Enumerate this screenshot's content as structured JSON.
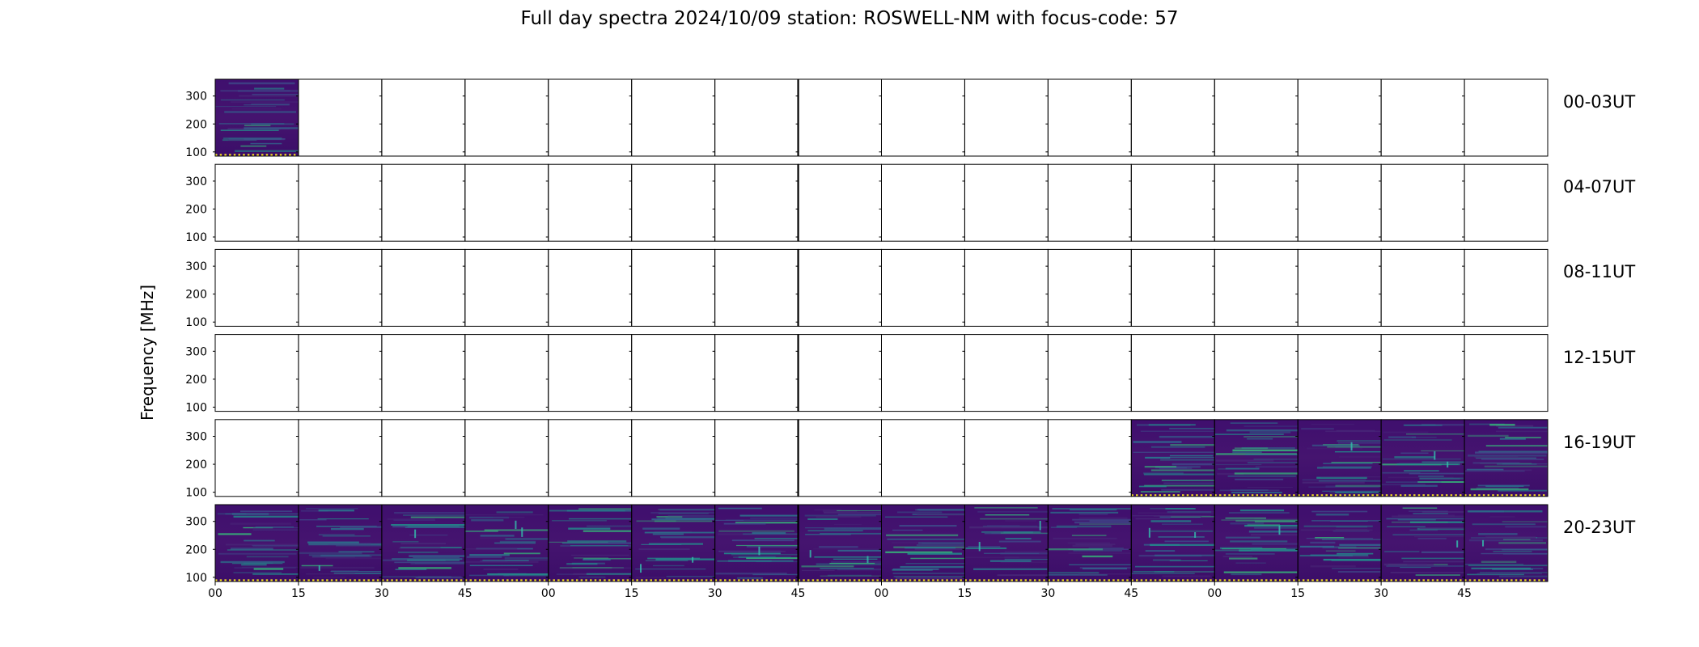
{
  "chart_data": {
    "type": "heatmap",
    "title": "Full day spectra 2024/10/09 station: ROSWELL-NM with focus-code: 57",
    "ylabel": "Frequency [MHz]",
    "xlabel": "",
    "ytick_labels": [
      "300",
      "200",
      "100"
    ],
    "ylim": [
      85,
      360
    ],
    "xtick_labels": [
      "00",
      "15",
      "30",
      "45",
      "00",
      "15",
      "30",
      "45",
      "00",
      "15",
      "30",
      "45",
      "00",
      "15",
      "30",
      "45"
    ],
    "panels_per_row": 16,
    "panel_minutes": 15,
    "colormap": "viridis",
    "rows": [
      {
        "label": "00-03UT",
        "data_panels": [
          0
        ]
      },
      {
        "label": "04-07UT",
        "data_panels": []
      },
      {
        "label": "08-11UT",
        "data_panels": []
      },
      {
        "label": "12-15UT",
        "data_panels": []
      },
      {
        "label": "16-19UT",
        "data_panels": [
          11,
          12,
          13,
          14,
          15
        ]
      },
      {
        "label": "20-23UT",
        "data_panels": [
          0,
          1,
          2,
          3,
          4,
          5,
          6,
          7,
          8,
          9,
          10,
          11,
          12,
          13,
          14,
          15
        ]
      }
    ]
  }
}
